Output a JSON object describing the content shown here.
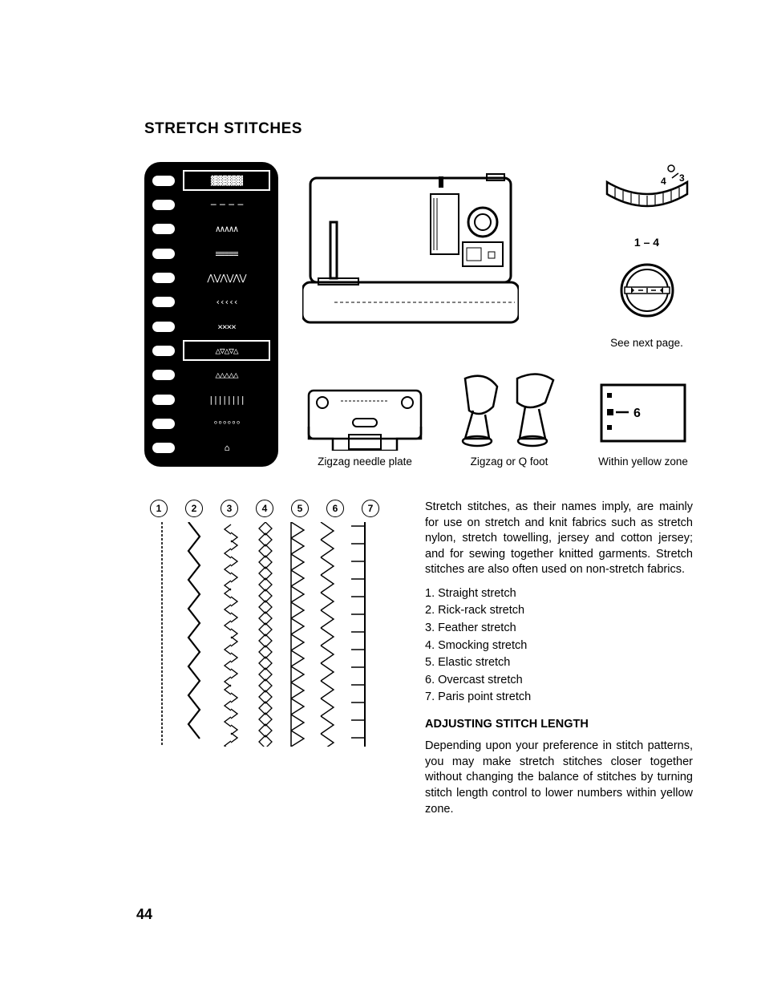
{
  "title": "STRETCH STITCHES",
  "panel": {
    "rows": 12,
    "boxed_indices": [
      0,
      7
    ],
    "stitch_glyphs": [
      "▓▓▓▓▓▓▓",
      "─ ─ ─ ─",
      "∧∧∧∧∧",
      "≡≡≡≡≡",
      "⋀⋁⋀⋁⋀⋁",
      "‹‹‹‹‹",
      "××××",
      "△▽△▽△",
      "△△△△△",
      "||||||||",
      "ᵒᵒᵒᵒᵒᵒ",
      "⌂"
    ]
  },
  "topdials": {
    "label1": "1 – 4",
    "numbers": [
      "4",
      "3"
    ],
    "see_next": "See next page."
  },
  "subfigs": {
    "needle_plate_caption": "Zigzag needle plate",
    "foot_caption": "Zigzag or Q foot",
    "yellow_zone_caption": "Within yellow zone",
    "yellow_zone_number": "6"
  },
  "circles": [
    "1",
    "2",
    "3",
    "4",
    "5",
    "6",
    "7"
  ],
  "stitch_list": {
    "intro": "Stretch stitches, as their names imply, are mainly for use on stretch and knit fabrics such as stretch nylon, stretch towelling, jersey and cotton jersey; and for sewing together knitted garments. Stretch stitches are also often used on non-stretch fabrics.",
    "items": [
      "Straight stretch",
      "Rick-rack stretch",
      "Feather stretch",
      "Smocking stretch",
      "Elastic stretch",
      "Overcast stretch",
      "Paris point stretch"
    ]
  },
  "adjust_head": "ADJUSTING STITCH LENGTH",
  "adjust_body": "Depending upon your preference in stitch patterns, you may make stretch stitches closer together without changing the balance of stitches by turning stitch length control to lower numbers within yellow zone.",
  "page_number": "44"
}
